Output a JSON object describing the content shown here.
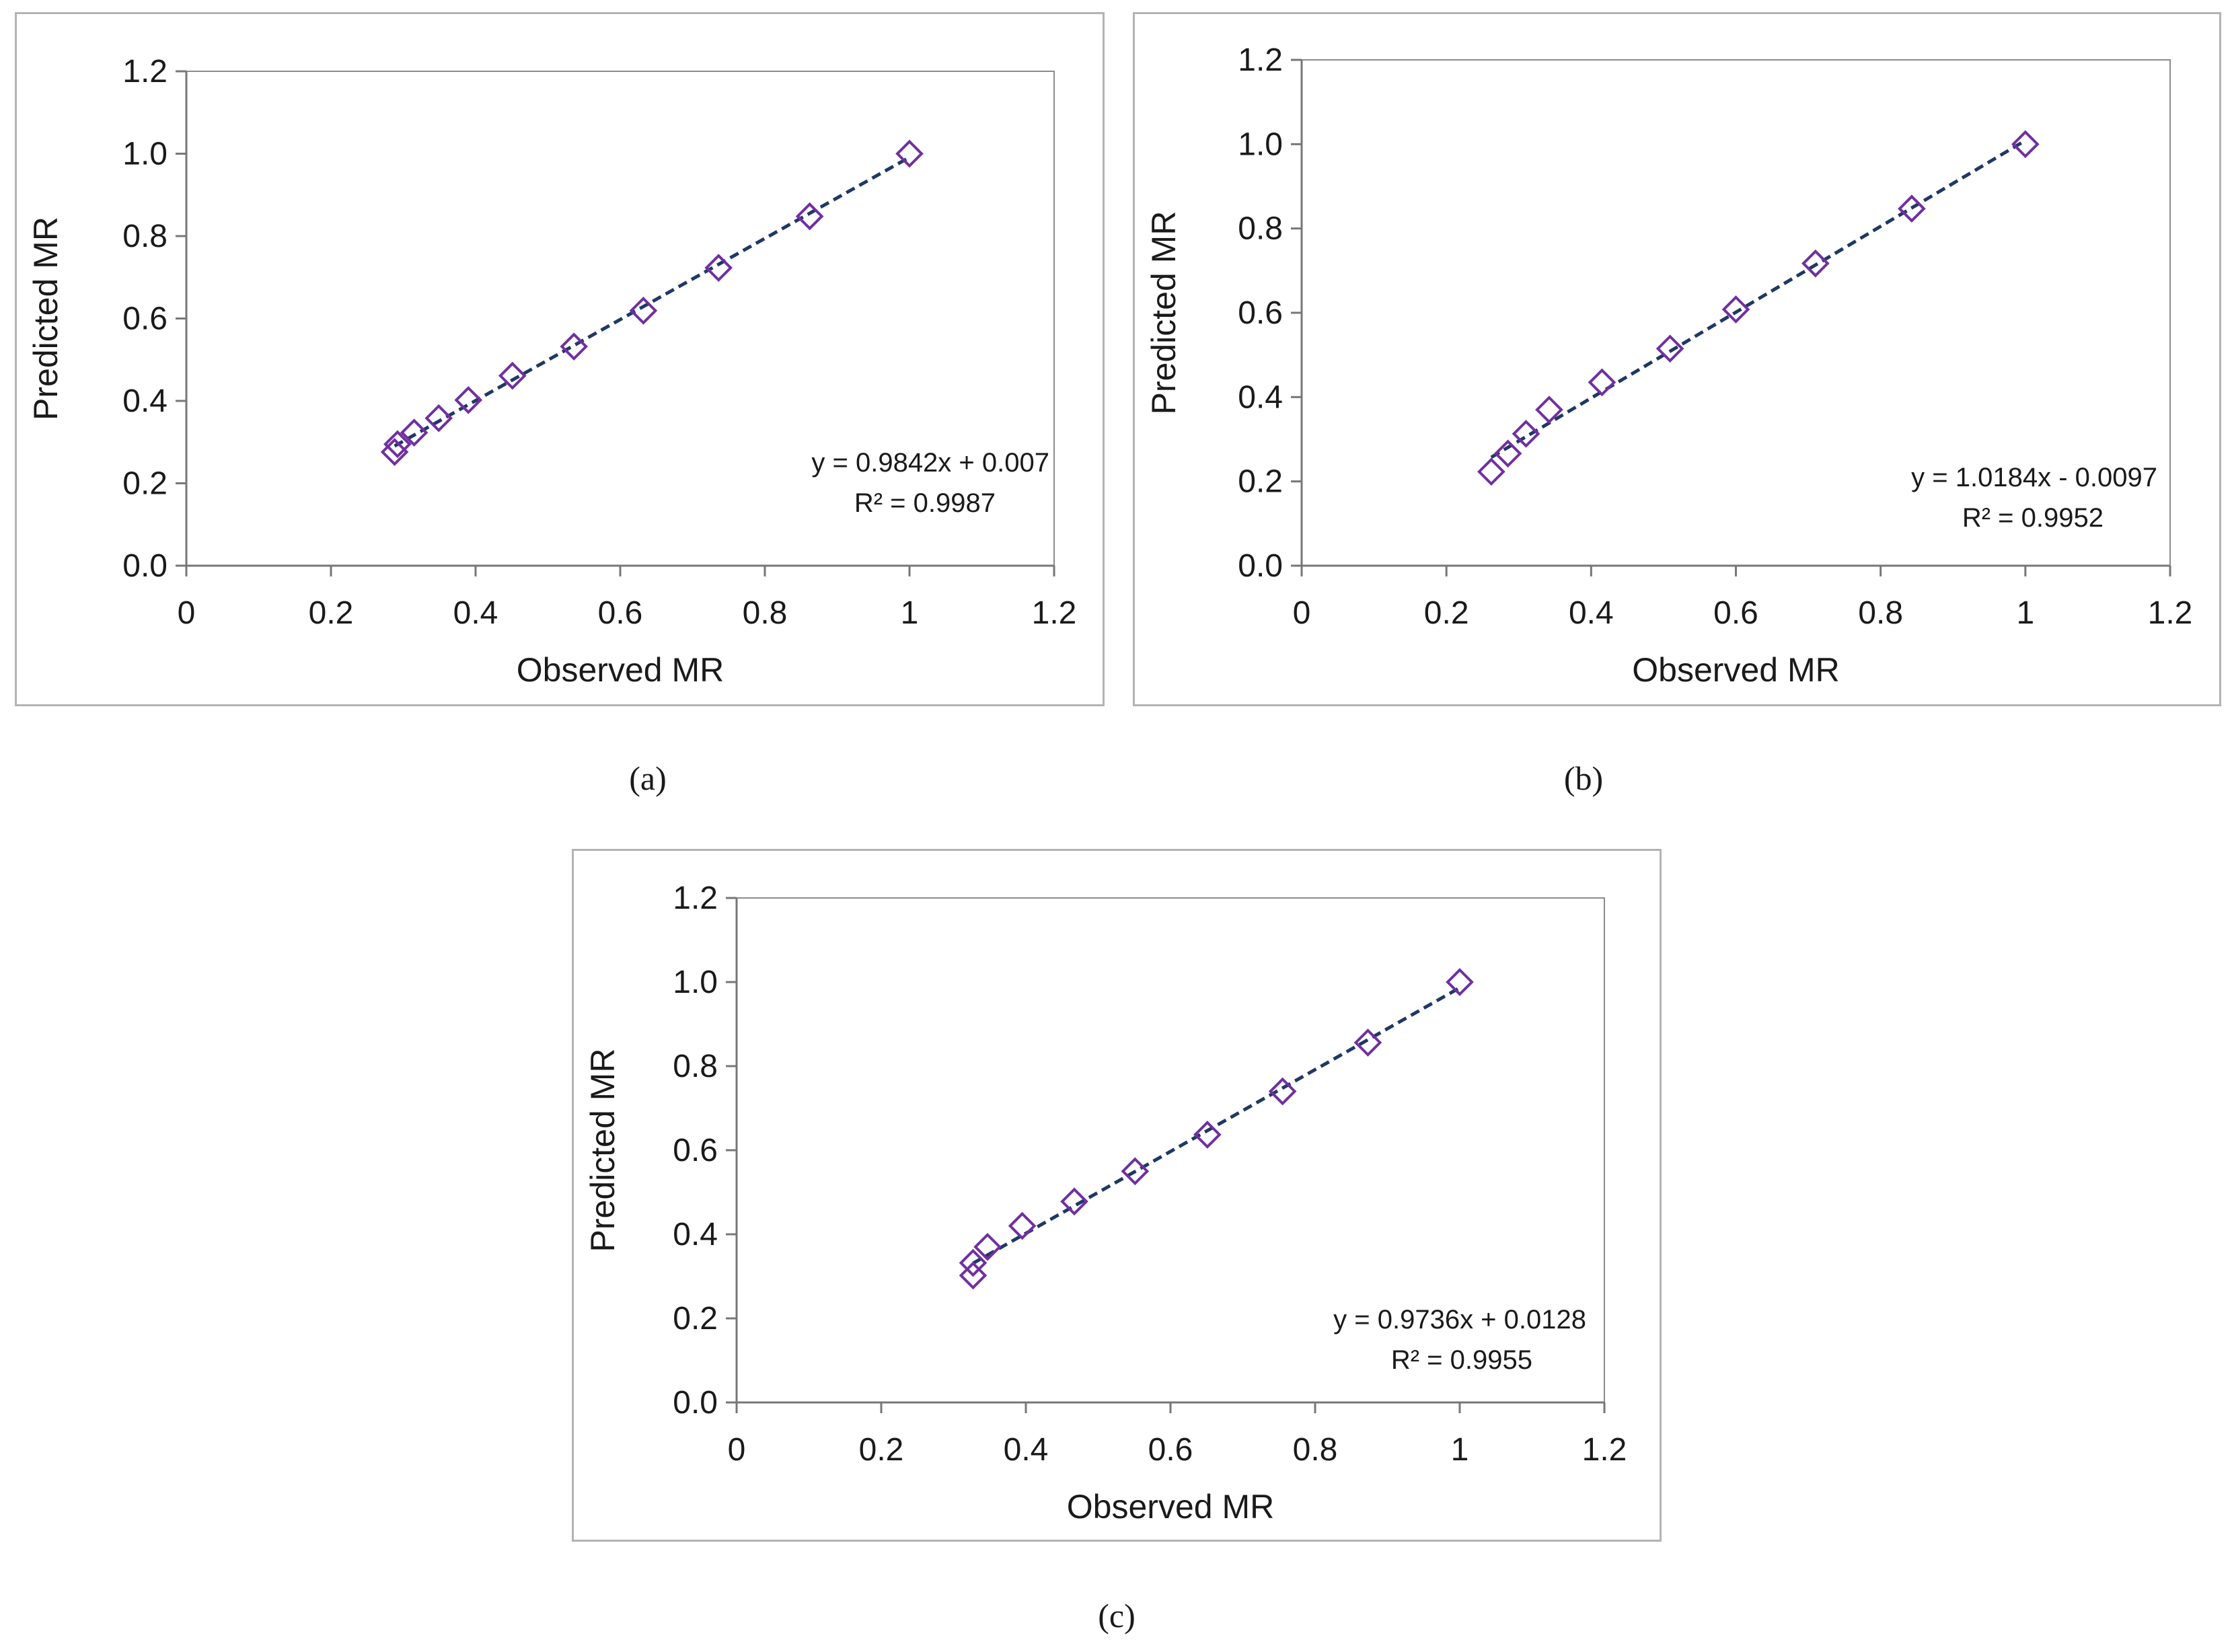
{
  "chart_data": [
    {
      "type": "scatter",
      "panel_label": "(a)",
      "xlabel": "Observed MR",
      "ylabel": "Predicted MR",
      "xlim": [
        0,
        1.2
      ],
      "ylim": [
        0,
        1.2
      ],
      "x_ticks": [
        "0",
        "0.2",
        "0.4",
        "0.6",
        "0.8",
        "1",
        "1.2"
      ],
      "y_ticks": [
        "0.0",
        "0.2",
        "0.4",
        "0.6",
        "0.8",
        "1.0",
        "1.2"
      ],
      "grid": false,
      "marker": "diamond",
      "marker_color": "#7030a0",
      "trendline": {
        "slope": 0.9842,
        "intercept": 0.007,
        "color": "#1f3864",
        "style": "dashed"
      },
      "equation": "y = 0.9842x + 0.007",
      "r_squared": "R² = 0.9987",
      "points": [
        {
          "x": 1.0,
          "y": 1.0
        },
        {
          "x": 0.862,
          "y": 0.848
        },
        {
          "x": 0.736,
          "y": 0.723
        },
        {
          "x": 0.632,
          "y": 0.619
        },
        {
          "x": 0.536,
          "y": 0.532
        },
        {
          "x": 0.451,
          "y": 0.461
        },
        {
          "x": 0.39,
          "y": 0.402
        },
        {
          "x": 0.349,
          "y": 0.358
        },
        {
          "x": 0.315,
          "y": 0.323
        },
        {
          "x": 0.292,
          "y": 0.295
        },
        {
          "x": 0.288,
          "y": 0.276
        }
      ]
    },
    {
      "type": "scatter",
      "panel_label": "(b)",
      "xlabel": "Observed MR",
      "ylabel": "Predicted MR",
      "xlim": [
        0,
        1.2
      ],
      "ylim": [
        0,
        1.2
      ],
      "x_ticks": [
        "0",
        "0.2",
        "0.4",
        "0.6",
        "0.8",
        "1",
        "1.2"
      ],
      "y_ticks": [
        "0.0",
        "0.2",
        "0.4",
        "0.6",
        "0.8",
        "1.0",
        "1.2"
      ],
      "grid": false,
      "marker": "diamond",
      "marker_color": "#7030a0",
      "trendline": {
        "slope": 1.0184,
        "intercept": -0.0097,
        "color": "#1f3864",
        "style": "dashed"
      },
      "equation": "y = 1.0184x - 0.0097",
      "r_squared": "R² = 0.9952",
      "points": [
        {
          "x": 1.0,
          "y": 1.0
        },
        {
          "x": 0.843,
          "y": 0.847
        },
        {
          "x": 0.71,
          "y": 0.717
        },
        {
          "x": 0.6,
          "y": 0.608
        },
        {
          "x": 0.509,
          "y": 0.515
        },
        {
          "x": 0.415,
          "y": 0.435
        },
        {
          "x": 0.342,
          "y": 0.37
        },
        {
          "x": 0.31,
          "y": 0.313
        },
        {
          "x": 0.285,
          "y": 0.266
        },
        {
          "x": 0.262,
          "y": 0.223
        }
      ]
    },
    {
      "type": "scatter",
      "panel_label": "(c)",
      "xlabel": "Observed MR",
      "ylabel": "Predicted MR",
      "xlim": [
        0,
        1.2
      ],
      "ylim": [
        0,
        1.2
      ],
      "x_ticks": [
        "0",
        "0.2",
        "0.4",
        "0.6",
        "0.8",
        "1",
        "1.2"
      ],
      "y_ticks": [
        "0.0",
        "0.2",
        "0.4",
        "0.6",
        "0.8",
        "1.0",
        "1.2"
      ],
      "grid": false,
      "marker": "diamond",
      "marker_color": "#7030a0",
      "trendline": {
        "slope": 0.9736,
        "intercept": 0.0128,
        "color": "#1f3864",
        "style": "dashed"
      },
      "equation": "y = 0.9736x + 0.0128",
      "r_squared": "R² = 0.9955",
      "points": [
        {
          "x": 1.0,
          "y": 1.0
        },
        {
          "x": 0.873,
          "y": 0.856
        },
        {
          "x": 0.755,
          "y": 0.74
        },
        {
          "x": 0.651,
          "y": 0.637
        },
        {
          "x": 0.551,
          "y": 0.55
        },
        {
          "x": 0.467,
          "y": 0.478
        },
        {
          "x": 0.395,
          "y": 0.42
        },
        {
          "x": 0.347,
          "y": 0.37
        },
        {
          "x": 0.327,
          "y": 0.332
        },
        {
          "x": 0.327,
          "y": 0.302
        }
      ]
    }
  ]
}
